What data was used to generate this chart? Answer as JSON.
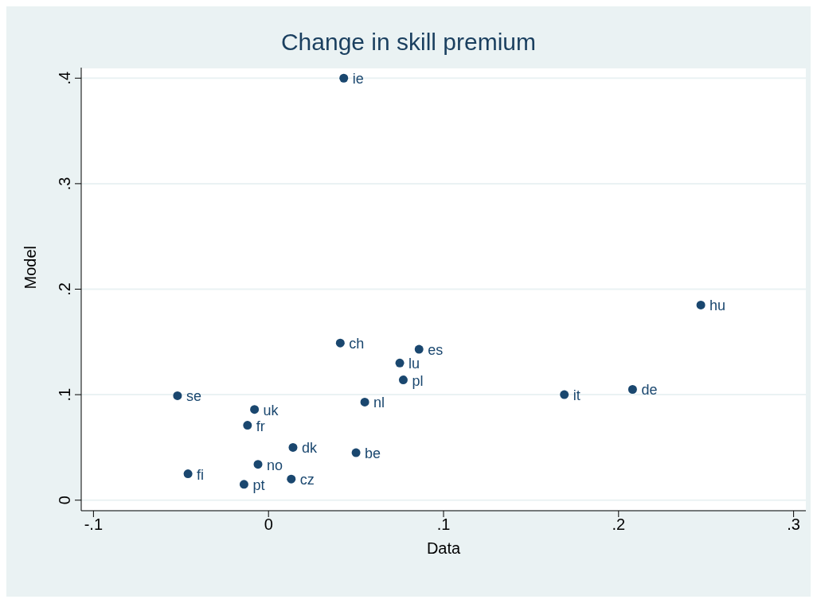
{
  "chart_data": {
    "type": "scatter",
    "title": "Change in skill premium",
    "xlabel": "Data",
    "ylabel": "Model",
    "x": [
      0.043,
      0.247,
      0.041,
      0.086,
      0.075,
      0.077,
      0.169,
      0.208,
      -0.052,
      -0.008,
      0.055,
      -0.012,
      0.014,
      0.05,
      -0.006,
      -0.046,
      0.013,
      -0.014
    ],
    "series": [
      {
        "color": "#1a476f",
        "values": [
          0.4,
          0.185,
          0.149,
          0.143,
          0.13,
          0.114,
          0.1,
          0.105,
          0.099,
          0.086,
          0.093,
          0.071,
          0.05,
          0.045,
          0.034,
          0.025,
          0.02,
          0.015
        ]
      }
    ],
    "annotations": [
      {
        "text": "ie",
        "x": 0.043,
        "y": 0.4
      },
      {
        "text": "hu",
        "x": 0.247,
        "y": 0.185
      },
      {
        "text": "ch",
        "x": 0.041,
        "y": 0.149
      },
      {
        "text": "es",
        "x": 0.086,
        "y": 0.143
      },
      {
        "text": "lu",
        "x": 0.075,
        "y": 0.13
      },
      {
        "text": "pl",
        "x": 0.077,
        "y": 0.114
      },
      {
        "text": "it",
        "x": 0.169,
        "y": 0.1
      },
      {
        "text": "de",
        "x": 0.208,
        "y": 0.105
      },
      {
        "text": "se",
        "x": -0.052,
        "y": 0.099
      },
      {
        "text": "uk",
        "x": -0.008,
        "y": 0.086
      },
      {
        "text": "nl",
        "x": 0.055,
        "y": 0.093
      },
      {
        "text": "fr",
        "x": -0.012,
        "y": 0.071
      },
      {
        "text": "dk",
        "x": 0.014,
        "y": 0.05
      },
      {
        "text": "be",
        "x": 0.05,
        "y": 0.045
      },
      {
        "text": "no",
        "x": -0.006,
        "y": 0.034
      },
      {
        "text": "fi",
        "x": -0.046,
        "y": 0.025
      },
      {
        "text": "cz",
        "x": 0.013,
        "y": 0.02
      },
      {
        "text": "pt",
        "x": -0.014,
        "y": 0.015
      }
    ],
    "xlim": [
      -0.107,
      0.307
    ],
    "ylim": [
      -0.01,
      0.41
    ],
    "xticks": [
      {
        "value": -0.1,
        "label": "-.1"
      },
      0,
      {
        "value": 0.1,
        "label": ".1"
      },
      {
        "value": 0.2,
        "label": ".2"
      },
      {
        "value": 0.3,
        "label": ".3"
      }
    ],
    "yticks": [
      0,
      {
        "value": 0.1,
        "label": ".1"
      },
      {
        "value": 0.2,
        "label": ".2"
      },
      {
        "value": 0.3,
        "label": ".3"
      },
      {
        "value": 0.4,
        "label": ".4"
      }
    ],
    "grid": "y",
    "marker": "circle"
  }
}
